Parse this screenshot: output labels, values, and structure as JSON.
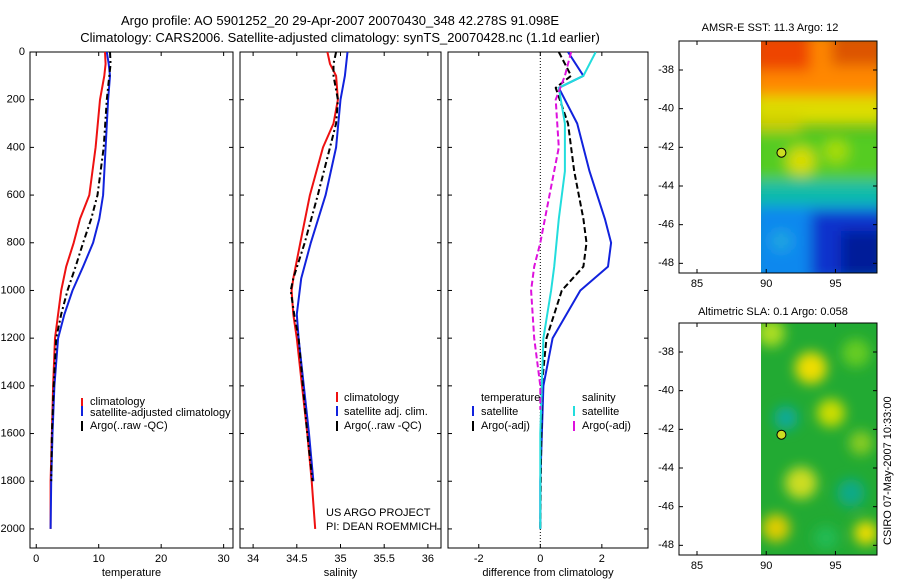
{
  "header": {
    "line1": "Argo profile: AO 5901252_20 29-Apr-2007 20070430_348 42.278S 91.098E",
    "line2": "Climatology: CARS2006. Satellite-adjusted climatology: synTS_20070428.nc (1.1d earlier)"
  },
  "side_text": "CSIRO 07-May-2007 10:33:00",
  "credit": [
    "US ARGO PROJECT",
    "PI: DEAN ROEMMICH"
  ],
  "colors": {
    "climatology": "#ee1111",
    "satellite": "#1122dd",
    "argo": "#000000",
    "satellite_sal": "#22dddd",
    "argo_sal": "#dd11dd"
  },
  "chart_data": [
    {
      "type": "line",
      "title": "",
      "xlabel": "temperature",
      "ylabel": "",
      "xlim": [
        -1,
        31.5
      ],
      "ylim": [
        2080,
        0
      ],
      "xticks": [
        0,
        10,
        20,
        30
      ],
      "yticks": [
        0,
        200,
        400,
        600,
        800,
        1000,
        1200,
        1400,
        1600,
        1800,
        2000
      ],
      "series": [
        {
          "name": "climatology",
          "color": "#ee1111",
          "dash": "",
          "x": [
            11.0,
            11.1,
            10.9,
            10.2,
            9.5,
            8.5,
            7.0,
            6.0,
            4.8,
            4.0,
            3.5,
            3.0,
            2.7,
            2.5,
            2.3,
            2.3
          ],
          "y": [
            0,
            50,
            100,
            200,
            400,
            600,
            700,
            800,
            900,
            1000,
            1100,
            1200,
            1400,
            1600,
            1800,
            2000
          ]
        },
        {
          "name": "satellite-adjusted climatology",
          "color": "#1122dd",
          "dash": "",
          "x": [
            11.3,
            11.6,
            11.8,
            11.5,
            11.1,
            10.7,
            10.1,
            9.1,
            7.5,
            5.8,
            4.5,
            3.5,
            2.9,
            2.6,
            2.4,
            2.3
          ],
          "y": [
            0,
            50,
            100,
            200,
            400,
            600,
            700,
            800,
            900,
            1000,
            1100,
            1200,
            1400,
            1600,
            1800,
            2000
          ]
        },
        {
          "name": "Argo(..raw -QC)",
          "color": "#000000",
          "dash": "6,3,2,3",
          "x": [
            11.8,
            11.9,
            11.7,
            11.3,
            10.8,
            9.8,
            8.8,
            7.5,
            6.3,
            5.0,
            4.0,
            3.2,
            2.8,
            2.5,
            2.4
          ],
          "y": [
            0,
            50,
            100,
            200,
            400,
            600,
            700,
            800,
            900,
            1000,
            1100,
            1200,
            1400,
            1600,
            1800
          ]
        }
      ],
      "legend": {
        "location": "lower-right",
        "entries": [
          "climatology",
          "satellite-adjusted climatology",
          "Argo(..raw -QC)"
        ]
      }
    },
    {
      "type": "line",
      "title": "",
      "xlabel": "salinity",
      "ylabel": "",
      "xlim": [
        33.85,
        36.15
      ],
      "ylim": [
        2080,
        0
      ],
      "xticks": [
        34,
        34.5,
        35,
        35.5,
        36
      ],
      "yticks": [
        0,
        200,
        400,
        600,
        800,
        1000,
        1200,
        1400,
        1600,
        1800,
        2000
      ],
      "series": [
        {
          "name": "climatology",
          "color": "#ee1111",
          "dash": "",
          "x": [
            34.85,
            34.88,
            34.95,
            34.97,
            34.92,
            34.8,
            34.65,
            34.54,
            34.46,
            34.44,
            34.46,
            34.5,
            34.56,
            34.62,
            34.67,
            34.71
          ],
          "y": [
            0,
            50,
            100,
            200,
            300,
            400,
            600,
            800,
            950,
            1000,
            1100,
            1200,
            1400,
            1600,
            1800,
            2000
          ]
        },
        {
          "name": "satellite adj. clim.",
          "color": "#1122dd",
          "dash": "",
          "x": [
            35.08,
            35.05,
            35.0,
            34.95,
            34.83,
            34.66,
            34.55,
            34.5,
            34.52,
            34.58,
            34.64,
            34.69
          ],
          "y": [
            0,
            100,
            200,
            400,
            600,
            800,
            950,
            1100,
            1200,
            1400,
            1600,
            1800
          ]
        },
        {
          "name": "Argo(..raw -QC)",
          "color": "#000000",
          "dash": "6,3,2,3",
          "x": [
            34.95,
            34.92,
            34.92,
            34.97,
            34.95,
            34.88,
            34.74,
            34.59,
            34.46,
            34.43,
            34.47,
            34.52,
            34.57,
            34.62,
            34.68
          ],
          "y": [
            0,
            50,
            100,
            200,
            300,
            400,
            600,
            800,
            950,
            1000,
            1100,
            1200,
            1400,
            1600,
            1800
          ]
        }
      ],
      "legend": {
        "location": "lower-right",
        "entries": [
          "climatology",
          "satellite adj. clim.",
          "Argo(..raw -QC)"
        ]
      }
    },
    {
      "type": "line",
      "title": "",
      "xlabel": "difference from climatology",
      "ylabel": "",
      "xlim": [
        -3,
        3.5
      ],
      "ylim": [
        2080,
        0
      ],
      "xticks": [
        -2,
        0,
        2
      ],
      "yticks": [
        0,
        200,
        400,
        600,
        800,
        1000,
        1200,
        1400,
        1600,
        1800,
        2000
      ],
      "series": [
        {
          "name": "temperature satellite",
          "color": "#1122dd",
          "dash": "",
          "x": [
            0.9,
            1.4,
            0.6,
            1.2,
            1.6,
            2.1,
            2.3,
            2.2,
            1.3,
            0.4,
            0.1,
            0.0,
            0.0
          ],
          "y": [
            0,
            100,
            150,
            300,
            500,
            700,
            800,
            900,
            1000,
            1200,
            1400,
            1800,
            2000
          ]
        },
        {
          "name": "temperature Argo(-adj)",
          "color": "#000000",
          "dash": "6,3",
          "x": [
            0.6,
            1.0,
            0.5,
            0.9,
            1.1,
            1.4,
            1.5,
            1.4,
            0.7,
            0.2,
            0.05,
            0.0
          ],
          "y": [
            0,
            100,
            150,
            300,
            500,
            700,
            800,
            900,
            1000,
            1200,
            1400,
            2000
          ]
        },
        {
          "name": "salinity satellite",
          "color": "#22dddd",
          "dash": "",
          "x": [
            1.8,
            1.4,
            0.6,
            0.8,
            0.8,
            0.6,
            0.45,
            0.35,
            0.1,
            0.0,
            0.0
          ],
          "y": [
            0,
            100,
            150,
            300,
            500,
            700,
            900,
            1000,
            1200,
            1600,
            2000
          ]
        },
        {
          "name": "salinity Argo(-adj)",
          "color": "#dd11dd",
          "dash": "6,3",
          "x": [
            1.0,
            0.8,
            0.5,
            0.6,
            0.3,
            0.0,
            -0.2,
            -0.3,
            -0.2,
            0.0,
            0.0
          ],
          "y": [
            0,
            100,
            200,
            400,
            600,
            800,
            900,
            1000,
            1200,
            1400,
            1500
          ]
        }
      ],
      "legend": {
        "location": "lower-center",
        "groups": [
          {
            "title": "temperature",
            "entries": [
              "satellite",
              "Argo(-adj)"
            ]
          },
          {
            "title": "salinity",
            "entries": [
              "satellite",
              "Argo(-adj)"
            ]
          }
        ]
      }
    },
    {
      "type": "heatmap",
      "title": "AMSR-E SST: 11.3 Argo: 12",
      "xlabel": "",
      "ylabel": "",
      "xlim": [
        83.7,
        98
      ],
      "ylim": [
        -48.5,
        -36.5
      ],
      "xticks": [
        85,
        90,
        95
      ],
      "yticks": [
        -38,
        -40,
        -42,
        -44,
        -46,
        -48
      ],
      "data_xlim": [
        90,
        98
      ],
      "marker": {
        "lon": 91.098,
        "lat": -42.278
      }
    },
    {
      "type": "heatmap",
      "title": "Altimetric SLA: 0.1 Argo: 0.058",
      "xlabel": "",
      "ylabel": "",
      "xlim": [
        83.7,
        98
      ],
      "ylim": [
        -48.5,
        -36.5
      ],
      "xticks": [
        85,
        90,
        95
      ],
      "yticks": [
        -38,
        -40,
        -42,
        -44,
        -46,
        -48
      ],
      "data_xlim": [
        90,
        98
      ],
      "marker": {
        "lon": 91.098,
        "lat": -42.278
      }
    }
  ]
}
